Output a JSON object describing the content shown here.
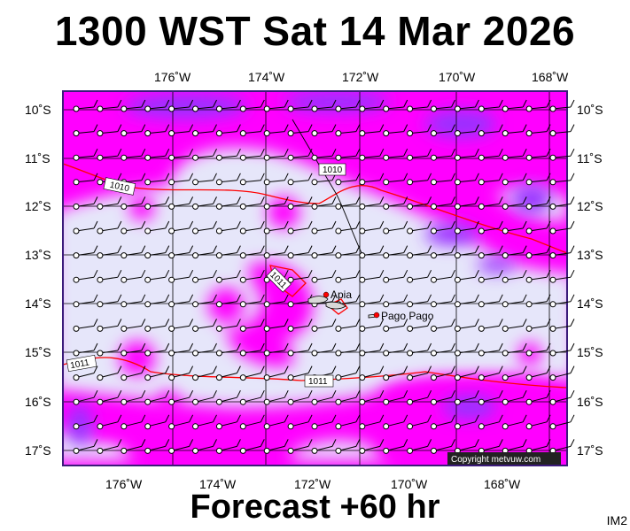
{
  "header": {
    "title": "1300 WST Sat 14 Mar 2026"
  },
  "footer": {
    "forecast": "Forecast +60 hr",
    "product_code": "IM2"
  },
  "map": {
    "top_axis": [
      "176˚W",
      "174˚W",
      "172˚W",
      "170˚W",
      "168˚W"
    ],
    "bottom_axis": [
      "176˚W",
      "174˚W",
      "172˚W",
      "170˚W",
      "168˚W"
    ],
    "left_axis": [
      "10˚S",
      "11˚S",
      "12˚S",
      "13˚S",
      "14˚S",
      "15˚S",
      "16˚S",
      "17˚S"
    ],
    "right_axis": [
      "10˚S",
      "11˚S",
      "12˚S",
      "13˚S",
      "14˚S",
      "15˚S",
      "16˚S",
      "17˚S"
    ],
    "isobars": [
      "1010",
      "1010",
      "1011",
      "1011",
      "1011"
    ],
    "cities": [
      {
        "name": "Apia",
        "lon": -171.76,
        "lat": -13.83
      },
      {
        "name": "Pago Pago",
        "lon": -170.7,
        "lat": -14.28
      }
    ],
    "copyright": "Copyright metvuw.com",
    "colors": {
      "calm": "#e6e6fa",
      "moderate": "#ff00ff",
      "strong": "#9933ff",
      "frame": "#3b1a7a",
      "isobar": "#ff0000"
    }
  }
}
